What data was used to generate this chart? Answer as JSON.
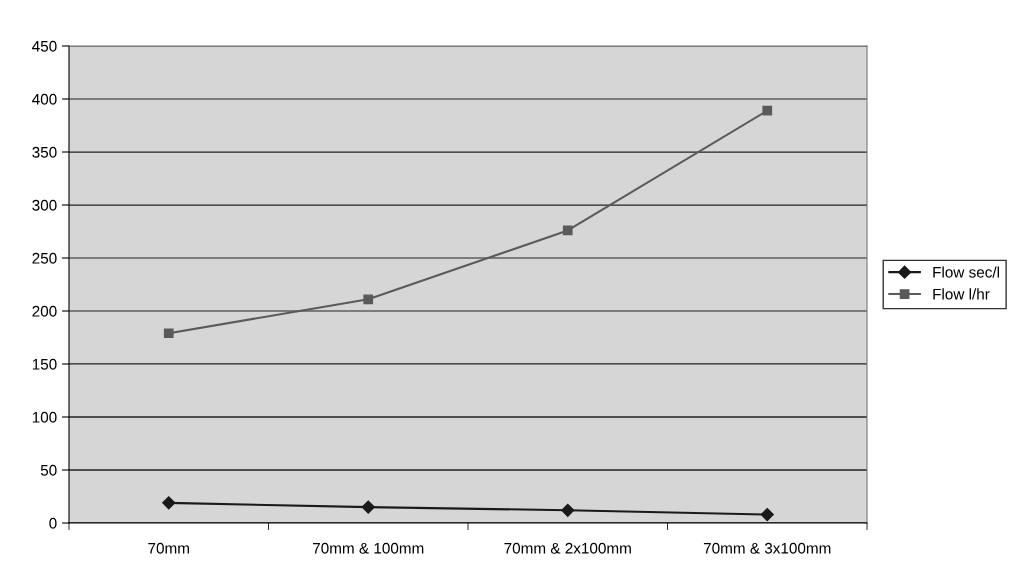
{
  "chart_data": {
    "type": "line",
    "categories": [
      "70mm",
      "70mm & 100mm",
      "70mm & 2x100mm",
      "70mm & 3x100mm"
    ],
    "series": [
      {
        "name": "Flow sec/l",
        "color": "#1a1a1a",
        "marker": "diamond",
        "values": [
          19,
          15,
          12,
          8
        ]
      },
      {
        "name": "Flow l/hr",
        "color": "#5a5a5a",
        "marker": "square",
        "values": [
          179,
          211,
          276,
          389
        ]
      }
    ],
    "ylim": [
      0,
      450
    ],
    "yticks": [
      0,
      50,
      100,
      150,
      200,
      250,
      300,
      350,
      400,
      450
    ],
    "grid": "y",
    "legend": "right"
  }
}
